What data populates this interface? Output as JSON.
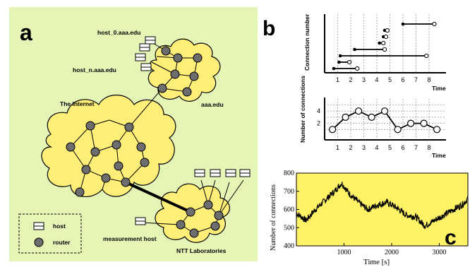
{
  "panel_a": {
    "letter": "a",
    "labels": {
      "host_0": "host_0.aaa.edu",
      "host_n": "host_n.aaa.edu",
      "internet": "The Internet",
      "aaa": "aaa.edu",
      "measurement": "measurement host",
      "ntt": "NTT Laboratories"
    },
    "legend": {
      "host": "host",
      "router": "router"
    },
    "colors": {
      "background": "#e4f5b6",
      "cloud": "#ffee77",
      "router": "#3a3a3a"
    }
  },
  "panel_b": {
    "letter": "b",
    "top_ylabel": "Connection number",
    "bottom_ylabel": "Number of connections",
    "xlabel": "Time"
  },
  "panel_c": {
    "letter": "c",
    "ylabel": "Number of connections",
    "xlabel": "Time [s]",
    "colors": {
      "background": "#fff266"
    }
  },
  "chart_data": [
    {
      "type": "gantt",
      "x_ticks": [
        "1",
        "2",
        "3",
        "4",
        "5",
        "6",
        "7",
        "8"
      ],
      "xlabel": "Time",
      "ylabel": "Connection number",
      "intervals": [
        {
          "start": 0.7,
          "end": 2.5
        },
        {
          "start": 1.1,
          "end": 1.9
        },
        {
          "start": 1.2,
          "end": 7.8
        },
        {
          "start": 2.3,
          "end": 4.6
        },
        {
          "start": 4.2,
          "end": 4.5
        },
        {
          "start": 4.5,
          "end": 4.7
        },
        {
          "start": 4.6,
          "end": 4.8
        },
        {
          "start": 6.0,
          "end": 8.4
        }
      ]
    },
    {
      "type": "line",
      "x": [
        0.6,
        1.6,
        2.6,
        3.6,
        4.6,
        5.6,
        6.6,
        7.6,
        8.6
      ],
      "y": [
        1,
        3,
        4,
        3,
        4,
        1,
        2,
        2,
        1
      ],
      "x_ticks": [
        "1",
        "2",
        "3",
        "4",
        "5",
        "6",
        "7",
        "8"
      ],
      "y_ticks": [
        "2",
        "4"
      ],
      "xlabel": "Time",
      "ylabel": "Number of connections"
    },
    {
      "type": "line",
      "xlim": [
        0,
        3600
      ],
      "ylim": [
        400,
        800
      ],
      "x_ticks": [
        "1000",
        "2000",
        "3000"
      ],
      "y_ticks": [
        "400",
        "500",
        "600",
        "700",
        "800"
      ],
      "xlabel": "Time [s]",
      "ylabel": "Number of connections",
      "series": [
        {
          "x": [
            0,
            200,
            400,
            600,
            800,
            950,
            1100,
            1300,
            1500,
            1700,
            1900,
            2100,
            2300,
            2500,
            2700,
            2900,
            3100,
            3300,
            3500,
            3600
          ],
          "y": [
            580,
            540,
            600,
            650,
            700,
            745,
            690,
            640,
            600,
            625,
            640,
            610,
            570,
            560,
            510,
            540,
            570,
            600,
            630,
            660
          ]
        }
      ]
    }
  ]
}
